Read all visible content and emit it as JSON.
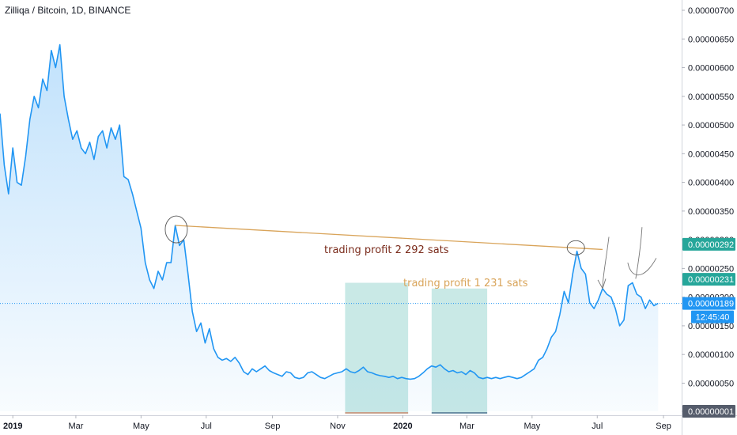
{
  "chart_data": {
    "type": "area",
    "title": "Zilliqa / Bitcoin, 1D, BINANCE",
    "symbol": "ZIL/BTC",
    "interval": "1D",
    "exchange": "BINANCE",
    "x_ticks": [
      "2019",
      "Mar",
      "May",
      "Jul",
      "Sep",
      "Nov",
      "2020",
      "Mar",
      "May",
      "Jul",
      "Sep"
    ],
    "y_ticks": [
      "0.00000700",
      "0.00000650",
      "0.00000600",
      "0.00000550",
      "0.00000500",
      "0.00000450",
      "0.00000400",
      "0.00000350",
      "0.00000300",
      "0.00000250",
      "0.00000200",
      "0.00000150",
      "0.00000100",
      "0.00000050",
      "0.00000001"
    ],
    "ylim": [
      1e-08,
      7e-06
    ],
    "xlim": [
      "2018-12-20",
      "2020-09-18"
    ],
    "series": [
      {
        "values": [
          [
            "2018-12-20",
            5.2e-06
          ],
          [
            "2018-12-24",
            4.3e-06
          ],
          [
            "2018-12-28",
            3.8e-06
          ],
          [
            "2019-01-01",
            4.6e-06
          ],
          [
            "2019-01-05",
            4e-06
          ],
          [
            "2019-01-09",
            3.95e-06
          ],
          [
            "2019-01-13",
            4.45e-06
          ],
          [
            "2019-01-17",
            5.1e-06
          ],
          [
            "2019-01-21",
            5.5e-06
          ],
          [
            "2019-01-25",
            5.3e-06
          ],
          [
            "2019-01-29",
            5.8e-06
          ],
          [
            "2019-02-02",
            5.6e-06
          ],
          [
            "2019-02-06",
            6.3e-06
          ],
          [
            "2019-02-10",
            6e-06
          ],
          [
            "2019-02-14",
            6.4e-06
          ],
          [
            "2019-02-18",
            5.5e-06
          ],
          [
            "2019-02-22",
            5.1e-06
          ],
          [
            "2019-02-26",
            4.75e-06
          ],
          [
            "2019-03-02",
            4.9e-06
          ],
          [
            "2019-03-06",
            4.6e-06
          ],
          [
            "2019-03-10",
            4.5e-06
          ],
          [
            "2019-03-14",
            4.7e-06
          ],
          [
            "2019-03-18",
            4.4e-06
          ],
          [
            "2019-03-22",
            4.8e-06
          ],
          [
            "2019-03-26",
            4.9e-06
          ],
          [
            "2019-03-30",
            4.6e-06
          ],
          [
            "2019-04-03",
            4.95e-06
          ],
          [
            "2019-04-07",
            4.75e-06
          ],
          [
            "2019-04-11",
            5e-06
          ],
          [
            "2019-04-15",
            4.1e-06
          ],
          [
            "2019-04-19",
            4.05e-06
          ],
          [
            "2019-04-23",
            3.8e-06
          ],
          [
            "2019-04-27",
            3.5e-06
          ],
          [
            "2019-05-01",
            3.2e-06
          ],
          [
            "2019-05-05",
            2.6e-06
          ],
          [
            "2019-05-09",
            2.3e-06
          ],
          [
            "2019-05-13",
            2.15e-06
          ],
          [
            "2019-05-17",
            2.45e-06
          ],
          [
            "2019-05-21",
            2.3e-06
          ],
          [
            "2019-05-25",
            2.6e-06
          ],
          [
            "2019-05-29",
            2.6e-06
          ],
          [
            "2019-06-02",
            3.25e-06
          ],
          [
            "2019-06-06",
            2.9e-06
          ],
          [
            "2019-06-10",
            3e-06
          ],
          [
            "2019-06-14",
            2.4e-06
          ],
          [
            "2019-06-18",
            1.75e-06
          ],
          [
            "2019-06-22",
            1.4e-06
          ],
          [
            "2019-06-26",
            1.55e-06
          ],
          [
            "2019-06-30",
            1.2e-06
          ],
          [
            "2019-07-04",
            1.45e-06
          ],
          [
            "2019-07-08",
            1.1e-06
          ],
          [
            "2019-07-12",
            9.5e-07
          ],
          [
            "2019-07-16",
            9e-07
          ],
          [
            "2019-07-20",
            9.3e-07
          ],
          [
            "2019-07-24",
            8.8e-07
          ],
          [
            "2019-07-28",
            9.5e-07
          ],
          [
            "2019-08-01",
            8.5e-07
          ],
          [
            "2019-08-05",
            7e-07
          ],
          [
            "2019-08-09",
            6.5e-07
          ],
          [
            "2019-08-13",
            7.5e-07
          ],
          [
            "2019-08-17",
            7e-07
          ],
          [
            "2019-08-21",
            7.5e-07
          ],
          [
            "2019-08-25",
            8e-07
          ],
          [
            "2019-08-29",
            7.2e-07
          ],
          [
            "2019-09-02",
            6.8e-07
          ],
          [
            "2019-09-06",
            6.5e-07
          ],
          [
            "2019-09-10",
            6.2e-07
          ],
          [
            "2019-09-14",
            7e-07
          ],
          [
            "2019-09-18",
            6.8e-07
          ],
          [
            "2019-09-22",
            6e-07
          ],
          [
            "2019-09-26",
            5.8e-07
          ],
          [
            "2019-09-30",
            6e-07
          ],
          [
            "2019-10-04",
            6.8e-07
          ],
          [
            "2019-10-08",
            7e-07
          ],
          [
            "2019-10-12",
            6.5e-07
          ],
          [
            "2019-10-16",
            6e-07
          ],
          [
            "2019-10-20",
            5.8e-07
          ],
          [
            "2019-10-24",
            6.2e-07
          ],
          [
            "2019-10-28",
            6.6e-07
          ],
          [
            "2019-11-01",
            6.8e-07
          ],
          [
            "2019-11-05",
            7e-07
          ],
          [
            "2019-11-09",
            7.5e-07
          ],
          [
            "2019-11-13",
            7e-07
          ],
          [
            "2019-11-17",
            6.8e-07
          ],
          [
            "2019-11-21",
            7.2e-07
          ],
          [
            "2019-11-25",
            7.8e-07
          ],
          [
            "2019-11-29",
            7e-07
          ],
          [
            "2019-12-03",
            6.8e-07
          ],
          [
            "2019-12-07",
            6.5e-07
          ],
          [
            "2019-12-11",
            6.3e-07
          ],
          [
            "2019-12-15",
            6.2e-07
          ],
          [
            "2019-12-19",
            6e-07
          ],
          [
            "2019-12-23",
            6.2e-07
          ],
          [
            "2019-12-27",
            5.8e-07
          ],
          [
            "2019-12-31",
            6e-07
          ],
          [
            "2020-01-04",
            5.8e-07
          ],
          [
            "2020-01-08",
            5.7e-07
          ],
          [
            "2020-01-12",
            5.8e-07
          ],
          [
            "2020-01-16",
            6.2e-07
          ],
          [
            "2020-01-20",
            6.8e-07
          ],
          [
            "2020-01-24",
            7.5e-07
          ],
          [
            "2020-01-28",
            8e-07
          ],
          [
            "2020-02-01",
            7.8e-07
          ],
          [
            "2020-02-05",
            8.2e-07
          ],
          [
            "2020-02-09",
            7.5e-07
          ],
          [
            "2020-02-13",
            7e-07
          ],
          [
            "2020-02-17",
            7.2e-07
          ],
          [
            "2020-02-21",
            6.8e-07
          ],
          [
            "2020-02-25",
            7e-07
          ],
          [
            "2020-02-29",
            6.5e-07
          ],
          [
            "2020-03-04",
            7.2e-07
          ],
          [
            "2020-03-08",
            6.8e-07
          ],
          [
            "2020-03-12",
            6e-07
          ],
          [
            "2020-03-16",
            5.8e-07
          ],
          [
            "2020-03-20",
            6e-07
          ],
          [
            "2020-03-24",
            5.8e-07
          ],
          [
            "2020-03-28",
            6e-07
          ],
          [
            "2020-04-01",
            5.8e-07
          ],
          [
            "2020-04-05",
            6e-07
          ],
          [
            "2020-04-09",
            6.2e-07
          ],
          [
            "2020-04-13",
            6e-07
          ],
          [
            "2020-04-17",
            5.8e-07
          ],
          [
            "2020-04-21",
            6e-07
          ],
          [
            "2020-04-25",
            6.5e-07
          ],
          [
            "2020-04-29",
            7e-07
          ],
          [
            "2020-05-03",
            7.5e-07
          ],
          [
            "2020-05-07",
            9e-07
          ],
          [
            "2020-05-11",
            9.5e-07
          ],
          [
            "2020-05-15",
            1.1e-06
          ],
          [
            "2020-05-19",
            1.3e-06
          ],
          [
            "2020-05-23",
            1.4e-06
          ],
          [
            "2020-05-27",
            1.7e-06
          ],
          [
            "2020-05-31",
            2.1e-06
          ],
          [
            "2020-06-04",
            1.9e-06
          ],
          [
            "2020-06-08",
            2.4e-06
          ],
          [
            "2020-06-12",
            2.8e-06
          ],
          [
            "2020-06-16",
            2.5e-06
          ],
          [
            "2020-06-20",
            2.4e-06
          ],
          [
            "2020-06-24",
            1.9e-06
          ],
          [
            "2020-06-28",
            1.8e-06
          ],
          [
            "2020-07-02",
            1.95e-06
          ],
          [
            "2020-07-06",
            2.15e-06
          ],
          [
            "2020-07-10",
            2.05e-06
          ],
          [
            "2020-07-14",
            2e-06
          ],
          [
            "2020-07-18",
            1.8e-06
          ],
          [
            "2020-07-22",
            1.5e-06
          ],
          [
            "2020-07-26",
            1.6e-06
          ],
          [
            "2020-07-30",
            2.2e-06
          ],
          [
            "2020-08-03",
            2.25e-06
          ],
          [
            "2020-08-07",
            2.05e-06
          ],
          [
            "2020-08-11",
            2e-06
          ],
          [
            "2020-08-15",
            1.8e-06
          ],
          [
            "2020-08-19",
            1.95e-06
          ],
          [
            "2020-08-23",
            1.85e-06
          ],
          [
            "2020-08-27",
            1.89e-06
          ]
        ]
      }
    ],
    "price_tags": [
      {
        "label": "0.00000292",
        "value": 2.92e-06,
        "color": "#26a69a"
      },
      {
        "label": "0.00000231",
        "value": 2.31e-06,
        "color": "#26a69a"
      },
      {
        "label": "0.00000189",
        "value": 1.89e-06,
        "color": "#2196f3"
      },
      {
        "label": "0.00000001",
        "value": 1e-08,
        "color": "#555c6b"
      }
    ],
    "countdown": "12:45:40",
    "annotations": [
      {
        "text": "trading profit 2 292 sats",
        "color": "#7a2b1b"
      },
      {
        "text": "trading profit 1 231 sats",
        "color": "#d9a45a"
      }
    ],
    "trend_line": {
      "from": [
        "2019-06-02",
        3.25e-06
      ],
      "to": [
        "2020-07-06",
        2.83e-06
      ],
      "color": "#d9a45a"
    },
    "profit_zones": [
      {
        "from": "2019-11-08",
        "to": "2020-01-06",
        "top": 2.25e-06,
        "color": "#26a69a"
      },
      {
        "from": "2020-01-28",
        "to": "2020-03-20",
        "top": 2.15e-06,
        "color": "#26a69a"
      }
    ],
    "line_color": "#2196f3",
    "grid": false,
    "legend": "none"
  }
}
